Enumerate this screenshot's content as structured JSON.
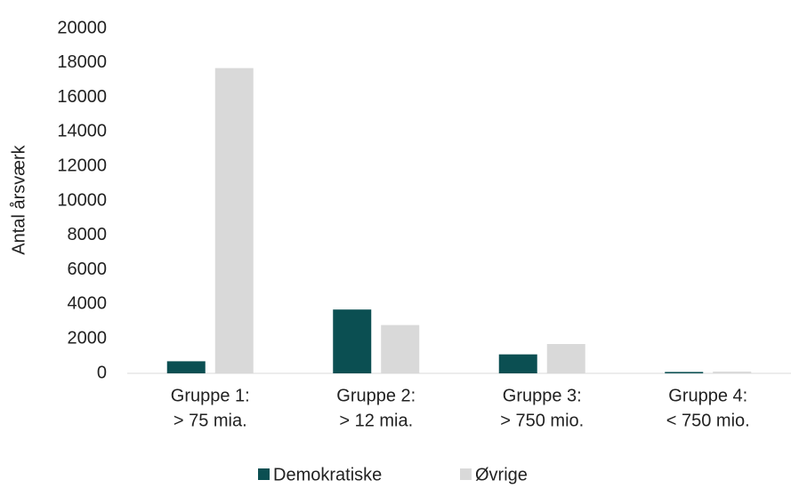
{
  "chart_data": {
    "type": "bar",
    "y_label": "Antal årsværk",
    "categories": [
      [
        "Gruppe 1:",
        "> 75 mia."
      ],
      [
        "Gruppe 2:",
        "> 12 mia."
      ],
      [
        "Gruppe 3:",
        "> 750 mio."
      ],
      [
        "Gruppe 4:",
        "< 750 mio."
      ]
    ],
    "series": [
      {
        "name": "Demokratiske",
        "color": "#0b4f52",
        "values": [
          700,
          3700,
          1100,
          80
        ]
      },
      {
        "name": "Øvrige",
        "color": "#d9d9d9",
        "values": [
          17700,
          2800,
          1700,
          100
        ]
      }
    ],
    "ylim": [
      0,
      20000
    ],
    "yticks": [
      0,
      2000,
      4000,
      6000,
      8000,
      10000,
      12000,
      14000,
      16000,
      18000,
      20000
    ],
    "grid": false,
    "legend": "bottom"
  }
}
